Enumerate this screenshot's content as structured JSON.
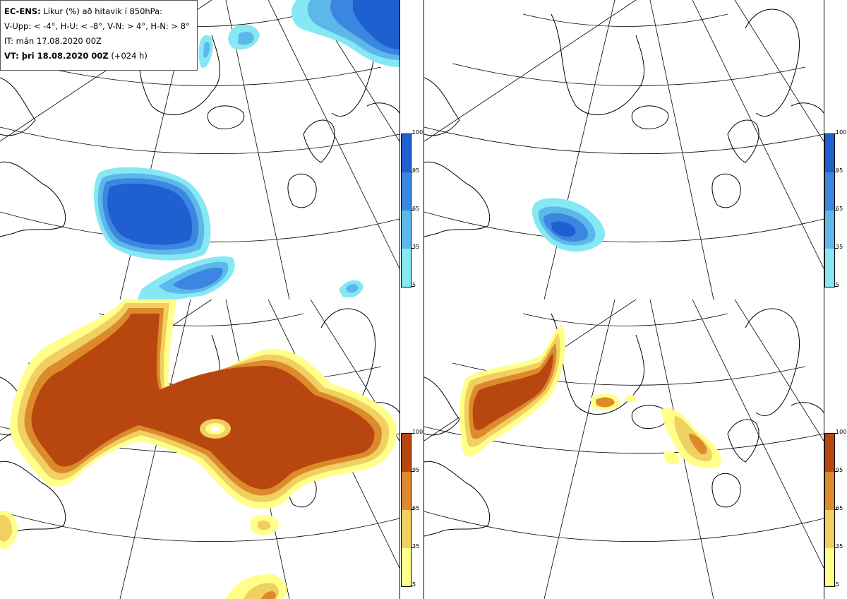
{
  "header": {
    "model": "EC-ENS:",
    "description": "Líkur (%) að hitavik í 850hPa:",
    "thresholds": "V-Upp: < -4°, H-U: < -8°, V-N: > 4°, H-N: > 8°",
    "init_time": "IT: mán 17.08.2020 00Z",
    "valid_prefix": "VT: þri 18.08.2020 00Z",
    "valid_suffix": "(+024 h)"
  },
  "colorbars": {
    "cold": {
      "ticks": [
        "100",
        "95",
        "65",
        "35",
        "5"
      ],
      "colors": [
        "#1f5fd0",
        "#3b86e0",
        "#5db8ea",
        "#86e8f4"
      ]
    },
    "warm": {
      "ticks": [
        "100",
        "95",
        "65",
        "35",
        "5"
      ],
      "colors": [
        "#b8470f",
        "#dc8a2c",
        "#f0d060",
        "#ffff8a"
      ]
    }
  },
  "panels": [
    {
      "id": "upper-left",
      "variable": "V-Upp",
      "palette": "cold"
    },
    {
      "id": "upper-right",
      "variable": "H-U",
      "palette": "cold"
    },
    {
      "id": "lower-left",
      "variable": "V-N",
      "palette": "warm"
    },
    {
      "id": "lower-right",
      "variable": "H-N",
      "palette": "warm"
    }
  ]
}
